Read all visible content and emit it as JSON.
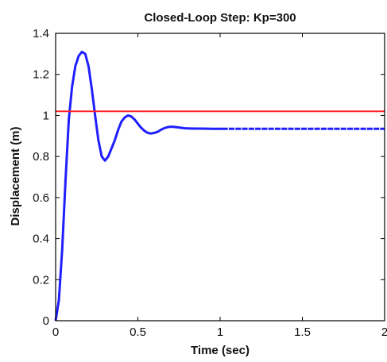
{
  "chart_data": {
    "type": "line",
    "title": "Closed-Loop Step: Kp=300",
    "xlabel": "Time (sec)",
    "ylabel": "Displacement (m)",
    "xlim": [
      0,
      2
    ],
    "ylim": [
      0,
      1.4
    ],
    "xticks": [
      0,
      0.5,
      1,
      1.5,
      2
    ],
    "xtick_labels": [
      "0",
      "0.5",
      "1",
      "1.5",
      "2"
    ],
    "yticks": [
      0,
      0.2,
      0.4,
      0.6,
      0.8,
      1,
      1.2,
      1.4
    ],
    "ytick_labels": [
      "0",
      "0.2",
      "0.4",
      "0.6",
      "0.8",
      "1",
      "1.2",
      "1.4"
    ],
    "grid": false,
    "series": [
      {
        "color": "#1f1fff",
        "style": "dashed",
        "x": [
          0,
          0.02,
          0.04,
          0.06,
          0.08,
          0.1,
          0.12,
          0.14,
          0.16,
          0.18,
          0.2,
          0.22,
          0.24,
          0.26,
          0.28,
          0.3,
          0.32,
          0.34,
          0.36,
          0.38,
          0.4,
          0.42,
          0.44,
          0.46,
          0.48,
          0.5,
          0.52,
          0.54,
          0.56,
          0.58,
          0.6,
          0.62,
          0.64,
          0.66,
          0.68,
          0.7,
          0.72,
          0.74,
          0.76,
          0.78,
          0.8,
          0.85,
          0.9,
          0.95,
          1.0,
          1.05,
          1.1,
          1.2,
          1.3,
          1.4,
          1.5,
          1.6,
          1.7,
          1.8,
          1.9,
          2.0
        ],
        "y": [
          0,
          0.1,
          0.35,
          0.68,
          0.98,
          1.14,
          1.24,
          1.29,
          1.31,
          1.3,
          1.24,
          1.13,
          1.0,
          0.88,
          0.8,
          0.78,
          0.8,
          0.84,
          0.88,
          0.93,
          0.97,
          0.99,
          1.0,
          0.995,
          0.98,
          0.96,
          0.94,
          0.925,
          0.915,
          0.912,
          0.915,
          0.92,
          0.93,
          0.938,
          0.943,
          0.945,
          0.944,
          0.942,
          0.94,
          0.938,
          0.937,
          0.936,
          0.936,
          0.935,
          0.935,
          0.935,
          0.935,
          0.935,
          0.935,
          0.935,
          0.935,
          0.935,
          0.935,
          0.935,
          0.935,
          0.935
        ]
      },
      {
        "color": "#ff2020",
        "style": "solid",
        "x": [
          0,
          2
        ],
        "y": [
          1.02,
          1.02
        ]
      }
    ]
  }
}
